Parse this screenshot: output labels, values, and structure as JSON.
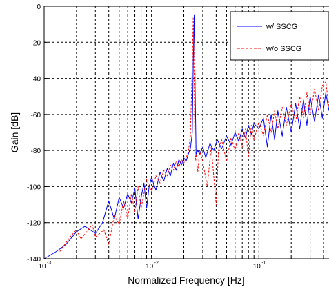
{
  "chart_data": {
    "type": "line",
    "title": "",
    "xlabel": "Normalized Frequency [Hz]",
    "ylabel": "Gain [dB]",
    "xscale": "log",
    "xlim": [
      0.001,
      0.45
    ],
    "ylim": [
      -140,
      0
    ],
    "grid": true,
    "legend_position": "top-right",
    "y_ticks": [
      "0",
      "-20",
      "-40",
      "-60",
      "-80",
      "-100",
      "-120",
      "-140"
    ],
    "x_ticks": [
      {
        "base": "10",
        "exp": "-3"
      },
      {
        "base": "10",
        "exp": "-2"
      },
      {
        "base": "10",
        "exp": "-1"
      }
    ],
    "series": [
      {
        "name": "w/ SSCG",
        "color": "#0000ff",
        "style": "solid",
        "x": [
          0.001,
          0.0013,
          0.0016,
          0.002,
          0.0024,
          0.003,
          0.0035,
          0.004,
          0.0045,
          0.005,
          0.0055,
          0.006,
          0.0065,
          0.007,
          0.0075,
          0.008,
          0.0085,
          0.009,
          0.0095,
          0.01,
          0.011,
          0.012,
          0.013,
          0.014,
          0.015,
          0.016,
          0.017,
          0.018,
          0.019,
          0.02,
          0.021,
          0.022,
          0.023,
          0.024,
          0.0245,
          0.025,
          0.0255,
          0.026,
          0.027,
          0.028,
          0.03,
          0.032,
          0.035,
          0.038,
          0.041,
          0.045,
          0.05,
          0.055,
          0.06,
          0.065,
          0.07,
          0.075,
          0.08,
          0.085,
          0.09,
          0.1,
          0.11,
          0.12,
          0.13,
          0.14,
          0.15,
          0.165,
          0.18,
          0.2,
          0.22,
          0.24,
          0.26,
          0.28,
          0.3,
          0.33,
          0.36,
          0.39,
          0.42,
          0.45
        ],
        "y": [
          -140,
          -136,
          -132,
          -125,
          -122,
          -126,
          -120,
          -108,
          -118,
          -106,
          -112,
          -104,
          -109,
          -101,
          -118,
          -106,
          -98,
          -112,
          -100,
          -95,
          -102,
          -92,
          -97,
          -90,
          -94,
          -87,
          -91,
          -85,
          -88,
          -84,
          -86,
          -82,
          -79,
          -70,
          -30,
          -5,
          -45,
          -82,
          -80,
          -82,
          -78,
          -84,
          -76,
          -80,
          -74,
          -79,
          -72,
          -77,
          -70,
          -75,
          -68,
          -73,
          -66,
          -71,
          -65,
          -68,
          -62,
          -78,
          -60,
          -74,
          -58,
          -72,
          -56,
          -70,
          -54,
          -68,
          -52,
          -66,
          -50,
          -64,
          -49,
          -62,
          -48,
          -58
        ]
      },
      {
        "name": "w/o SSCG",
        "color": "#ff0000",
        "style": "dashed",
        "x": [
          0.0014,
          0.0016,
          0.0018,
          0.002,
          0.0022,
          0.0025,
          0.0028,
          0.003,
          0.0033,
          0.0036,
          0.004,
          0.0045,
          0.005,
          0.0055,
          0.006,
          0.0065,
          0.007,
          0.0075,
          0.008,
          0.009,
          0.01,
          0.011,
          0.012,
          0.013,
          0.014,
          0.015,
          0.016,
          0.017,
          0.018,
          0.019,
          0.02,
          0.021,
          0.022,
          0.023,
          0.024,
          0.0245,
          0.025,
          0.0255,
          0.026,
          0.027,
          0.028,
          0.03,
          0.033,
          0.036,
          0.04,
          0.042,
          0.045,
          0.05,
          0.055,
          0.06,
          0.065,
          0.07,
          0.075,
          0.08,
          0.085,
          0.09,
          0.1,
          0.11,
          0.12,
          0.13,
          0.14,
          0.15,
          0.165,
          0.18,
          0.2,
          0.22,
          0.24,
          0.26,
          0.28,
          0.3,
          0.33,
          0.36,
          0.39,
          0.42,
          0.45
        ],
        "y": [
          -136,
          -131,
          -127,
          -124,
          -129,
          -125,
          -121,
          -128,
          -126,
          -124,
          -132,
          -116,
          -121,
          -108,
          -118,
          -104,
          -114,
          -100,
          -112,
          -96,
          -103,
          -94,
          -98,
          -91,
          -94,
          -88,
          -91,
          -86,
          -89,
          -85,
          -87,
          -84,
          -81,
          -72,
          -32,
          -6,
          -42,
          -86,
          -82,
          -92,
          -80,
          -86,
          -100,
          -78,
          -110,
          -80,
          -74,
          -86,
          -73,
          -80,
          -70,
          -78,
          -68,
          -84,
          -66,
          -74,
          -64,
          -72,
          -60,
          -70,
          -58,
          -68,
          -56,
          -66,
          -54,
          -64,
          -50,
          -62,
          -48,
          -60,
          -46,
          -58,
          -44,
          -42,
          -56
        ]
      }
    ]
  }
}
